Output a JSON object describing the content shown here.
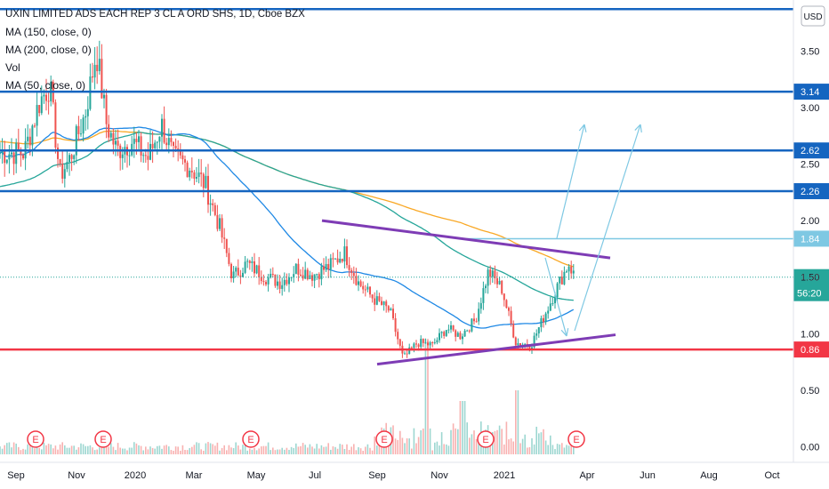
{
  "legend": {
    "title": "UXIN LIMITED ADS EACH REP 3 CL A ORD SHS, 1D, Cboe BZX",
    "ma150": "MA (150, close, 0)",
    "ma200": "MA (200, close, 0)",
    "vol": "Vol",
    "ma50": "MA (50, close, 0)"
  },
  "currency_label": "USD",
  "colors": {
    "up": "#26a69a",
    "down": "#ef5350",
    "hline": "#1565c0",
    "support": "#f23645",
    "trend": "#7e3cb5",
    "ma50": "#1e88e5",
    "ma150": "#26a69a",
    "ma200": "#f9a825",
    "lightline": "#7ec8e3",
    "earnings": "#f23645",
    "axis_text": "#131722"
  },
  "chart_data": {
    "type": "candlestick",
    "title": "UXIN LIMITED ADS EACH REP 3 CL A ORD SHS, 1D, Cboe BZX",
    "x_ticks": [
      "Sep",
      "Nov",
      "2020",
      "Mar",
      "May",
      "Jul",
      "Sep",
      "Nov",
      "2021",
      "Apr",
      "Jun",
      "Aug",
      "Oct"
    ],
    "y_ticks": [
      "3.50",
      "3.00",
      "2.50",
      "2.00",
      "1.50",
      "1.00",
      "0.50",
      "0.00"
    ],
    "y_tick_values": [
      3.5,
      3.0,
      2.5,
      2.0,
      1.5,
      1.0,
      0.5,
      0.0
    ],
    "ylim": [
      -0.1,
      4.0
    ],
    "horizontal_levels": [
      {
        "value": 3.87,
        "label": "",
        "style": "thick"
      },
      {
        "value": 3.14,
        "label": "3.14",
        "style": "thick"
      },
      {
        "value": 2.62,
        "label": "2.62",
        "style": "thick"
      },
      {
        "value": 2.26,
        "label": "2.26",
        "style": "thick"
      },
      {
        "value": 1.84,
        "label": "1.84",
        "style": "thin"
      },
      {
        "value": 0.86,
        "label": "0.86",
        "style": "support"
      }
    ],
    "price_marker": {
      "value": 1.5,
      "label": "1.50",
      "countdown": "56:20"
    },
    "indicators": [
      "MA (150, close, 0)",
      "MA (200, close, 0)",
      "Vol",
      "MA (50, close, 0)"
    ],
    "earnings_markers": [
      {
        "label": "E",
        "near": "Sep 2019"
      },
      {
        "label": "E",
        "near": "Nov 2019"
      },
      {
        "label": "E",
        "near": "May 2020"
      },
      {
        "label": "E",
        "near": "Sep 2020"
      },
      {
        "label": "E",
        "near": "Dec 2020"
      },
      {
        "label": "E",
        "near": "Mar 2021"
      }
    ],
    "trendlines": [
      {
        "name": "resistance",
        "from": {
          "x": "Jul 2020",
          "y": 2.0
        },
        "to": {
          "x": "Apr 2021",
          "y": 1.67
        }
      },
      {
        "name": "support",
        "from": {
          "x": "Sep 2020",
          "y": 0.73
        },
        "to": {
          "x": "Apr 2021",
          "y": 0.99
        }
      }
    ],
    "close_series": [
      [
        "2019-08-26",
        2.6
      ],
      [
        "2019-09-10",
        3.05
      ],
      [
        "2019-09-20",
        3.2
      ],
      [
        "2019-09-30",
        2.4
      ],
      [
        "2019-10-10",
        2.55
      ],
      [
        "2019-10-25",
        2.95
      ],
      [
        "2019-11-05",
        3.5
      ],
      [
        "2019-11-15",
        2.85
      ],
      [
        "2019-11-25",
        2.62
      ],
      [
        "2019-12-10",
        2.7
      ],
      [
        "2019-12-26",
        2.55
      ],
      [
        "2020-01-08",
        2.85
      ],
      [
        "2020-01-20",
        2.55
      ],
      [
        "2020-02-05",
        2.48
      ],
      [
        "2020-02-20",
        2.32
      ],
      [
        "2020-03-05",
        1.95
      ],
      [
        "2020-03-18",
        1.5
      ],
      [
        "2020-04-01",
        1.62
      ],
      [
        "2020-04-20",
        1.5
      ],
      [
        "2020-05-05",
        1.45
      ],
      [
        "2020-05-20",
        1.58
      ],
      [
        "2020-06-05",
        1.52
      ],
      [
        "2020-06-22",
        1.6
      ],
      [
        "2020-07-06",
        1.72
      ],
      [
        "2020-07-20",
        1.45
      ],
      [
        "2020-08-05",
        1.3
      ],
      [
        "2020-08-20",
        1.2
      ],
      [
        "2020-09-02",
        0.78
      ],
      [
        "2020-09-16",
        0.92
      ],
      [
        "2020-10-01",
        0.9
      ],
      [
        "2020-10-15",
        1.05
      ],
      [
        "2020-10-28",
        0.98
      ],
      [
        "2020-11-12",
        1.12
      ],
      [
        "2020-11-25",
        1.55
      ],
      [
        "2020-12-08",
        1.4
      ],
      [
        "2020-12-22",
        0.92
      ],
      [
        "2021-01-06",
        0.9
      ],
      [
        "2021-01-20",
        1.18
      ],
      [
        "2021-02-01",
        1.42
      ],
      [
        "2021-02-12",
        1.62
      ],
      [
        "2021-02-18",
        1.5
      ]
    ]
  }
}
